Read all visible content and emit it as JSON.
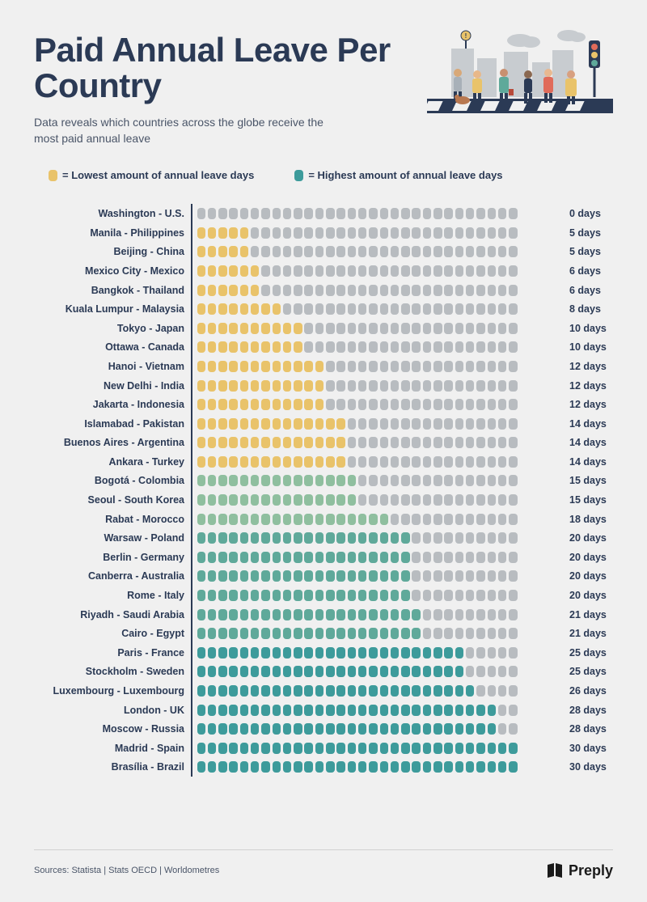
{
  "title": "Paid Annual Leave Per Country",
  "subtitle": "Data reveals which countries across the globe receive the most paid annual leave",
  "legend": {
    "low": "= Lowest amount of annual leave days",
    "high": "= Highest amount of annual leave days"
  },
  "colors": {
    "empty": "#b8bcc0",
    "yellow": "#e9c36a",
    "green_light": "#8fbf9f",
    "teal_med": "#5fa99a",
    "teal_dark": "#3d9b9b",
    "title": "#2b3a55",
    "bg": "#f0f0f0"
  },
  "max_pills": 30,
  "rows": [
    {
      "label": "Washington - U.S.",
      "days": 0,
      "color": "empty",
      "suffix": "0 days"
    },
    {
      "label": "Manila - Philippines",
      "days": 5,
      "color": "yellow",
      "suffix": "5 days"
    },
    {
      "label": "Beijing - China",
      "days": 5,
      "color": "yellow",
      "suffix": "5 days"
    },
    {
      "label": "Mexico City - Mexico",
      "days": 6,
      "color": "yellow",
      "suffix": "6 days"
    },
    {
      "label": "Bangkok -  Thailand",
      "days": 6,
      "color": "yellow",
      "suffix": "6 days"
    },
    {
      "label": "Kuala Lumpur - Malaysia",
      "days": 8,
      "color": "yellow",
      "suffix": "8 days"
    },
    {
      "label": "Tokyo - Japan",
      "days": 10,
      "color": "yellow",
      "suffix": "10 days"
    },
    {
      "label": "Ottawa - Canada",
      "days": 10,
      "color": "yellow",
      "suffix": "10 days"
    },
    {
      "label": "Hanoi - Vietnam",
      "days": 12,
      "color": "yellow",
      "suffix": "12 days"
    },
    {
      "label": "New Delhi - India",
      "days": 12,
      "color": "yellow",
      "suffix": "12 days"
    },
    {
      "label": "Jakarta - Indonesia",
      "days": 12,
      "color": "yellow",
      "suffix": "12 days"
    },
    {
      "label": "Islamabad - Pakistan",
      "days": 14,
      "color": "yellow",
      "suffix": "14 days"
    },
    {
      "label": "Buenos Aires - Argentina",
      "days": 14,
      "color": "yellow",
      "suffix": "14 days"
    },
    {
      "label": "Ankara - Turkey",
      "days": 14,
      "color": "yellow",
      "suffix": "14 days"
    },
    {
      "label": "Bogotá - Colombia",
      "days": 15,
      "color": "green_light",
      "suffix": "15 days"
    },
    {
      "label": "Seoul - South Korea",
      "days": 15,
      "color": "green_light",
      "suffix": "15 days"
    },
    {
      "label": "Rabat - Morocco",
      "days": 18,
      "color": "green_light",
      "suffix": "18 days"
    },
    {
      "label": "Warsaw - Poland",
      "days": 20,
      "color": "teal_med",
      "suffix": "20 days"
    },
    {
      "label": "Berlin - Germany",
      "days": 20,
      "color": "teal_med",
      "suffix": "20 days"
    },
    {
      "label": "Canberra - Australia",
      "days": 20,
      "color": "teal_med",
      "suffix": "20 days"
    },
    {
      "label": "Rome - Italy",
      "days": 20,
      "color": "teal_med",
      "suffix": "20 days"
    },
    {
      "label": "Riyadh - Saudi Arabia",
      "days": 21,
      "color": "teal_med",
      "suffix": "21 days"
    },
    {
      "label": "Cairo - Egypt",
      "days": 21,
      "color": "teal_med",
      "suffix": "21 days"
    },
    {
      "label": "Paris - France",
      "days": 25,
      "color": "teal_dark",
      "suffix": "25 days"
    },
    {
      "label": "Stockholm - Sweden",
      "days": 25,
      "color": "teal_dark",
      "suffix": "25 days"
    },
    {
      "label": "Luxembourg - Luxembourg",
      "days": 26,
      "color": "teal_dark",
      "suffix": "26 days"
    },
    {
      "label": "London - UK",
      "days": 28,
      "color": "teal_dark",
      "suffix": "28 days"
    },
    {
      "label": "Moscow - Russia",
      "days": 28,
      "color": "teal_dark",
      "suffix": "28 days"
    },
    {
      "label": "Madrid - Spain",
      "days": 30,
      "color": "teal_dark",
      "suffix": "30 days"
    },
    {
      "label": "Brasília - Brazil",
      "days": 30,
      "color": "teal_dark",
      "suffix": "30 days"
    }
  ],
  "sources": "Sources: Statista | Stats OECD | Worldometres",
  "logo_text": "Preply"
}
